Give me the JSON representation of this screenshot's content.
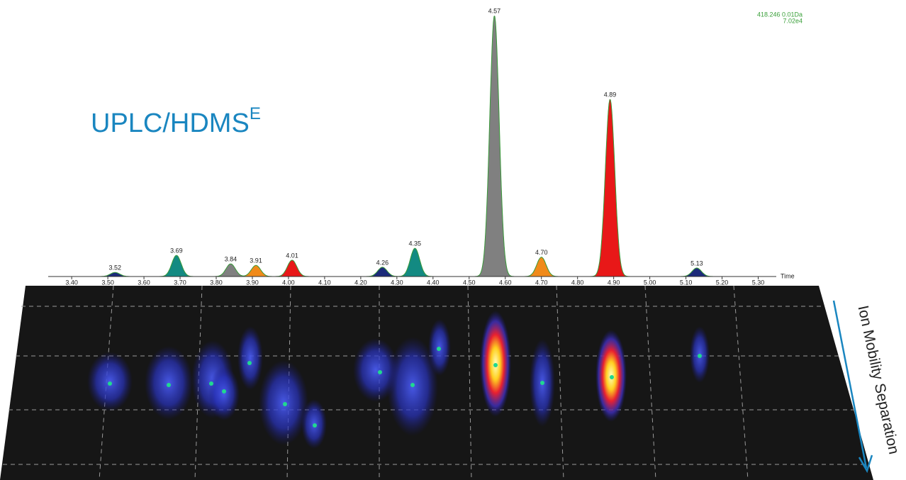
{
  "chart_data": {
    "type": "chromatogram",
    "title": "UPLC/HDMS",
    "title_superscript": "E",
    "annotations": [
      "418.246 0.01Da",
      "7.02e4"
    ],
    "x_label": "Time",
    "side_label": "Ion Mobility Separation",
    "x": [
      3.52,
      3.69,
      3.84,
      3.91,
      4.01,
      4.26,
      4.35,
      4.57,
      4.7,
      4.89,
      5.13
    ],
    "value_labels": [
      "3.52",
      "3.69",
      "3.84",
      "3.91",
      "4.01",
      "4.26",
      "4.35",
      "4.57",
      "4.70",
      "4.89",
      "5.13"
    ],
    "values": [
      1100,
      5700,
      3400,
      3000,
      4400,
      2500,
      7600,
      70200,
      5200,
      47700,
      2300
    ],
    "colors": [
      "#1c2a7a",
      "#138a82",
      "#808080",
      "#f08a1a",
      "#e81818",
      "#1c2a7a",
      "#138a82",
      "#808080",
      "#f08a1a",
      "#e81818",
      "#1c2a7a"
    ],
    "xlim": [
      3.335,
      5.35
    ],
    "ylim": [
      0,
      70200
    ],
    "xticks": [
      {
        "value": 3.4,
        "label": "3.40"
      },
      {
        "value": 3.5,
        "label": "3.50"
      },
      {
        "value": 3.6,
        "label": "3.60"
      },
      {
        "value": 3.7,
        "label": "3.70"
      },
      {
        "value": 3.8,
        "label": "3.80"
      },
      {
        "value": 3.9,
        "label": "3.90"
      },
      {
        "value": 4.0,
        "label": "4.00"
      },
      {
        "value": 4.1,
        "label": "4.10"
      },
      {
        "value": 4.2,
        "label": "4.20"
      },
      {
        "value": 4.3,
        "label": "4.30"
      },
      {
        "value": 4.4,
        "label": "4.40"
      },
      {
        "value": 4.5,
        "label": "4.50"
      },
      {
        "value": 4.6,
        "label": "4.60"
      },
      {
        "value": 4.7,
        "label": "4.70"
      },
      {
        "value": 4.8,
        "label": "4.80"
      },
      {
        "value": 4.9,
        "label": "4.90"
      },
      {
        "value": 5.0,
        "label": "5.00"
      },
      {
        "value": 5.1,
        "label": "5.10"
      },
      {
        "value": 5.2,
        "label": "5.20"
      },
      {
        "value": 5.3,
        "label": "5.30"
      }
    ]
  }
}
